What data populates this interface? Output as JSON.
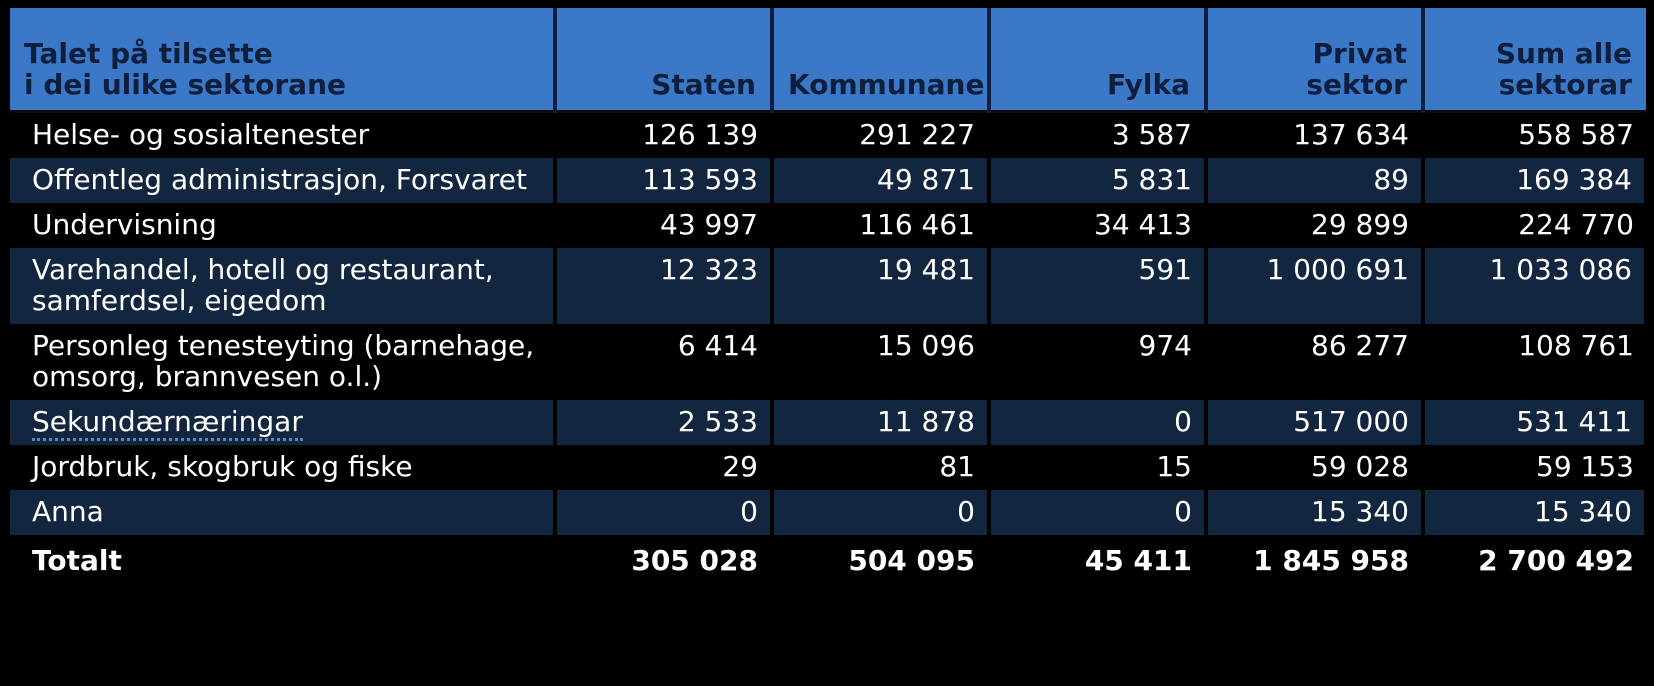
{
  "table": {
    "header": {
      "label_line1": "Talet på tilsette",
      "label_line2": "i dei ulike sektorane",
      "staten": "Staten",
      "kommunane": "Kommunane",
      "fylka": "Fylka",
      "privat_line1": "Privat",
      "privat_line2": "sektor",
      "sum_line1": "Sum alle",
      "sum_line2": "sektorar"
    },
    "rows": [
      {
        "label_line1": "Helse- og sosialtenester",
        "label_line2": "",
        "staten": "126 139",
        "kommunane": "291 227",
        "fylka": "3 587",
        "privat": "137 634",
        "sum": "558 587"
      },
      {
        "label_line1": "Offentleg administrasjon, Forsvaret",
        "label_line2": "",
        "staten": "113 593",
        "kommunane": "49 871",
        "fylka": "5 831",
        "privat": "89",
        "sum": "169 384"
      },
      {
        "label_line1": "Undervisning",
        "label_line2": "",
        "staten": "43 997",
        "kommunane": "116 461",
        "fylka": "34 413",
        "privat": "29 899",
        "sum": "224 770"
      },
      {
        "label_line1": "Varehandel, hotell og restaurant,",
        "label_line2": "samferdsel, eigedom",
        "staten": "12 323",
        "kommunane": "19 481",
        "fylka": "591",
        "privat": "1 000 691",
        "sum": "1 033 086"
      },
      {
        "label_line1": "Personleg tenesteyting (barnehage,",
        "label_line2": "omsorg, brannvesen o.l.)",
        "staten": "6 414",
        "kommunane": "15 096",
        "fylka": "974",
        "privat": "86 277",
        "sum": "108 761"
      },
      {
        "label_line1": "Sekundærnæringar",
        "label_line2": "",
        "staten": "2 533",
        "kommunane": "11 878",
        "fylka": "0",
        "privat": "517 000",
        "sum": "531 411"
      },
      {
        "label_line1": "Jordbruk, skogbruk og fiske",
        "label_line2": "",
        "staten": "29",
        "kommunane": "81",
        "fylka": "15",
        "privat": "59 028",
        "sum": "59 153"
      },
      {
        "label_line1": "Anna",
        "label_line2": "",
        "staten": "0",
        "kommunane": "0",
        "fylka": "0",
        "privat": "15 340",
        "sum": "15 340"
      }
    ],
    "total": {
      "label": "Totalt",
      "staten": "305 028",
      "kommunane": "504 095",
      "fylka": "45 411",
      "privat": "1 845 958",
      "sum": "2 700 492"
    }
  },
  "colors": {
    "header_bg": "#3b78c8",
    "header_text": "#0d1f3d",
    "row_blue": "#13263f",
    "row_dark": "#000000",
    "text": "#ffffff",
    "dotted_underline": "#5d83c4"
  }
}
